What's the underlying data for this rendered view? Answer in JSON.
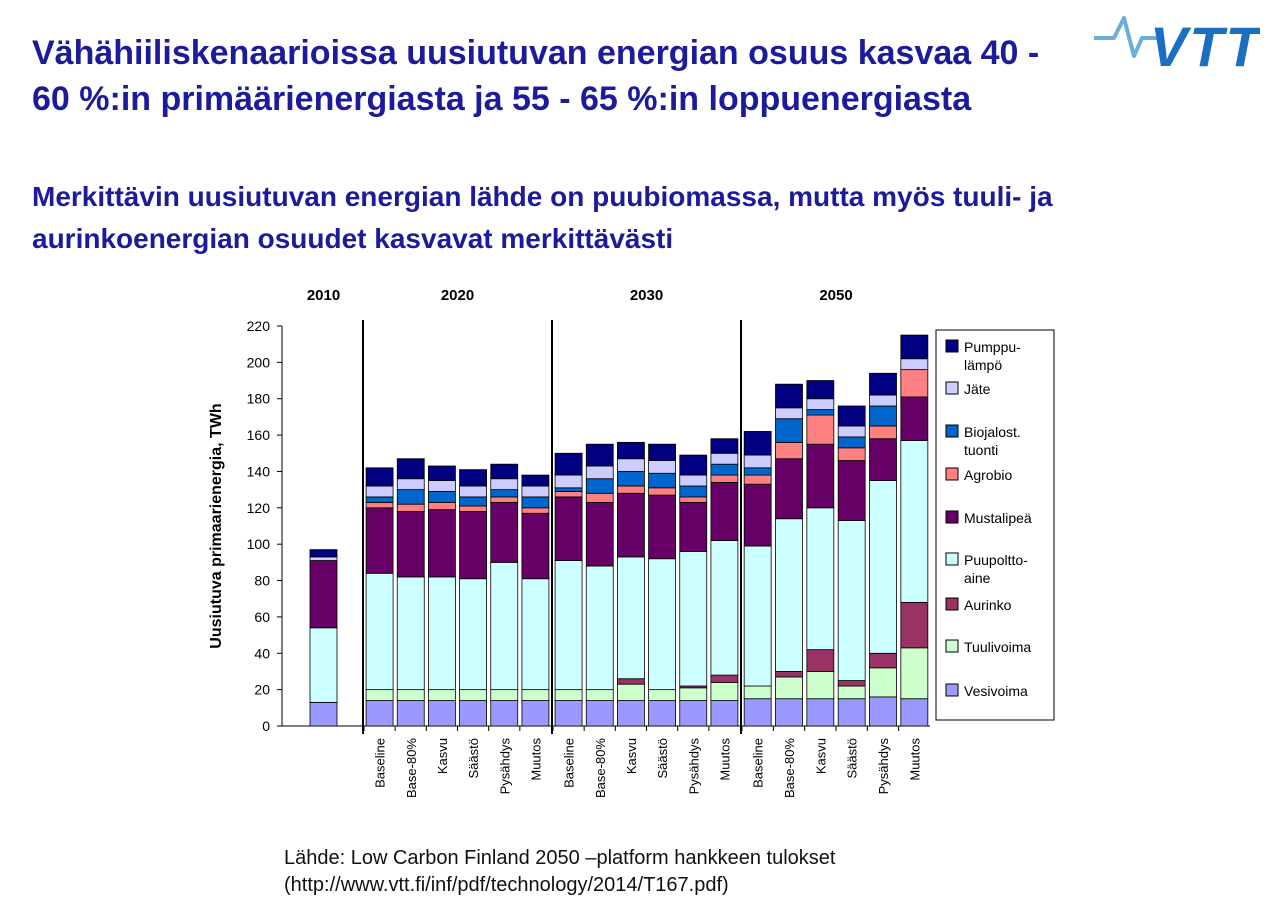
{
  "slide": {
    "title": "Vähähiiliskenaarioissa uusiutuvan energian osuus kasvaa 40 - 60 %:in primäärienergiasta ja 55 - 65 %:in loppuenergiasta",
    "subtitle": "Merkittävin uusiutuvan energian lähde on puubiomassa, mutta myös tuuli- ja aurinkoenergian osuudet kasvavat merkittävästi",
    "source_line1": "Lähde: Low Carbon Finland 2050 –platform hankkeen tulokset",
    "source_line2": "(http://www.vtt.fi/inf/pdf/technology/2014/T167.pdf)",
    "logo_text": "VTT",
    "logo_color": "#1a6fc0",
    "title_color": "#1b1b9b"
  },
  "chart_data": {
    "type": "bar",
    "stacked": true,
    "ylabel": "Uusiutuva primaarienergia, TWh",
    "ylim": [
      0,
      220
    ],
    "yticks": [
      0,
      20,
      40,
      60,
      80,
      100,
      120,
      140,
      160,
      180,
      200,
      220
    ],
    "grid": false,
    "legend_position": "right",
    "groups": [
      {
        "label": "2010",
        "categories": [
          ""
        ]
      },
      {
        "label": "2020",
        "categories": [
          "Baseline",
          "Base-80%",
          "Kasvu",
          "Säästö",
          "Pysähdys",
          "Muutos"
        ]
      },
      {
        "label": "2030",
        "categories": [
          "Baseline",
          "Base-80%",
          "Kasvu",
          "Säästö",
          "Pysähdys",
          "Muutos"
        ]
      },
      {
        "label": "2050",
        "categories": [
          "Baseline",
          "Base-80%",
          "Kasvu",
          "Säästö",
          "Pysähdys",
          "Muutos"
        ]
      }
    ],
    "series": [
      {
        "name": "Vesivoima",
        "color": "#9999ff",
        "values": [
          13,
          14,
          14,
          14,
          14,
          14,
          14,
          14,
          14,
          14,
          14,
          14,
          14,
          15,
          15,
          15,
          15,
          16,
          15
        ]
      },
      {
        "name": "Tuulivoima",
        "color": "#ccffcc",
        "values": [
          0,
          6,
          6,
          6,
          6,
          6,
          6,
          6,
          6,
          9,
          6,
          7,
          10,
          7,
          12,
          15,
          7,
          16,
          28
        ]
      },
      {
        "name": "Aurinko",
        "color": "#993366",
        "values": [
          0,
          0,
          0,
          0,
          0,
          0,
          0,
          0,
          0,
          3,
          0,
          1,
          4,
          0,
          3,
          12,
          3,
          8,
          25
        ]
      },
      {
        "name": "Puupolttoaine",
        "color": "#ccffff",
        "values": [
          41,
          64,
          62,
          62,
          61,
          70,
          61,
          71,
          68,
          67,
          72,
          74,
          74,
          77,
          84,
          78,
          88,
          95,
          89
        ]
      },
      {
        "name": "Mustalipeä",
        "color": "#660066",
        "values": [
          37,
          36,
          36,
          37,
          37,
          33,
          36,
          35,
          35,
          35,
          35,
          27,
          32,
          34,
          33,
          35,
          33,
          23,
          24
        ]
      },
      {
        "name": "Agrobio",
        "color": "#ff8080",
        "values": [
          0,
          3,
          4,
          4,
          3,
          3,
          3,
          3,
          5,
          4,
          4,
          3,
          4,
          5,
          9,
          16,
          7,
          7,
          15
        ]
      },
      {
        "name": "Biojalost. tuonti",
        "color": "#0066cc",
        "values": [
          0,
          3,
          8,
          6,
          5,
          4,
          6,
          2,
          8,
          8,
          8,
          6,
          6,
          4,
          13,
          3,
          6,
          11,
          0
        ]
      },
      {
        "name": "Jäte",
        "color": "#ccccff",
        "values": [
          2,
          6,
          6,
          6,
          6,
          6,
          6,
          7,
          7,
          7,
          7,
          6,
          6,
          7,
          6,
          6,
          6,
          6,
          6
        ]
      },
      {
        "name": "Pumppulämpö",
        "color": "#000080",
        "values": [
          4,
          10,
          11,
          8,
          9,
          8,
          6,
          12,
          12,
          9,
          9,
          11,
          8,
          13,
          13,
          10,
          11,
          12,
          13
        ]
      }
    ],
    "legend_labels": [
      {
        "series": "Pumppulämpö",
        "lines": [
          "Pumppu-",
          "lämpö"
        ]
      },
      {
        "series": "Jäte",
        "lines": [
          "Jäte"
        ]
      },
      {
        "series": "Biojalost. tuonti",
        "lines": [
          "Biojalost.",
          "tuonti"
        ]
      },
      {
        "series": "Agrobio",
        "lines": [
          "Agrobio"
        ]
      },
      {
        "series": "Mustalipeä",
        "lines": [
          "Mustalipeä"
        ]
      },
      {
        "series": "Puupolttoaine",
        "lines": [
          "Puupoltto-",
          "aine"
        ]
      },
      {
        "series": "Aurinko",
        "lines": [
          "Aurinko"
        ]
      },
      {
        "series": "Tuulivoima",
        "lines": [
          "Tuulivoima"
        ]
      },
      {
        "series": "Vesivoima",
        "lines": [
          "Vesivoima"
        ]
      }
    ]
  }
}
